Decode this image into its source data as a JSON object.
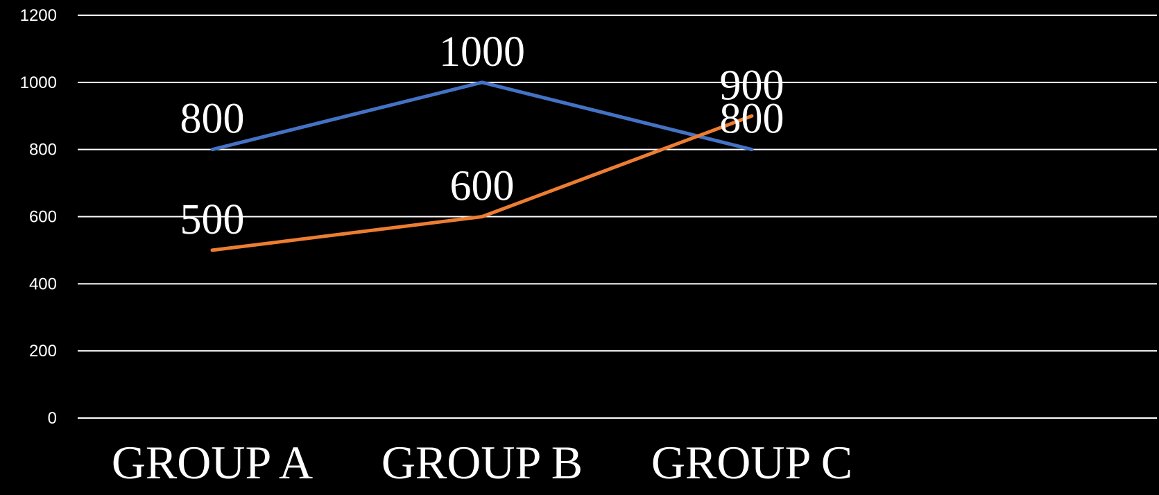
{
  "chart_data": {
    "type": "line",
    "categories": [
      "GROUP A",
      "GROUP B",
      "GROUP C"
    ],
    "series": [
      {
        "values": [
          800,
          1000,
          800
        ],
        "color": "#4472C4"
      },
      {
        "values": [
          500,
          600,
          900
        ],
        "color": "#ED7D31"
      }
    ],
    "ylim": [
      0,
      1200
    ],
    "y_ticks": [
      0,
      200,
      400,
      600,
      800,
      1000,
      1200
    ],
    "grid": true,
    "legend": "none",
    "data_labels": true,
    "background": "#000000",
    "text_color": "#ffffff"
  }
}
